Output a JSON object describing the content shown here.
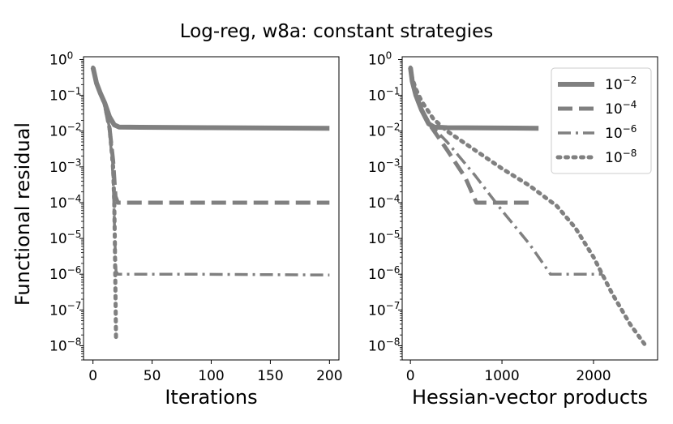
{
  "figure": {
    "title": "Log-reg, w8a: constant strategies",
    "shared_ylabel": "Functional residual",
    "colors": {
      "series": "#808080",
      "axis": "#000000",
      "legend_border": "#cccccc",
      "background": "#ffffff"
    }
  },
  "chart_data": [
    {
      "type": "line",
      "panel": "left",
      "title": "",
      "xlabel": "Iterations",
      "ylabel": "Functional residual",
      "xscale": "linear",
      "yscale": "log",
      "xlim": [
        -8,
        208
      ],
      "ylim": [
        4e-09,
        1.2
      ],
      "xticks": [
        0,
        50,
        100,
        150,
        200
      ],
      "xtick_labels": [
        "0",
        "50",
        "100",
        "150",
        "200"
      ],
      "yticks": [
        1,
        0.1,
        0.01,
        0.001,
        0.0001,
        1e-05,
        1e-06,
        1e-07,
        1e-08
      ],
      "ytick_labels": [
        {
          "base": "10",
          "exp": "0"
        },
        {
          "base": "10",
          "exp": "−1"
        },
        {
          "base": "10",
          "exp": "−2"
        },
        {
          "base": "10",
          "exp": "−3"
        },
        {
          "base": "10",
          "exp": "−4"
        },
        {
          "base": "10",
          "exp": "−5"
        },
        {
          "base": "10",
          "exp": "−6"
        },
        {
          "base": "10",
          "exp": "−7"
        },
        {
          "base": "10",
          "exp": "−8"
        }
      ],
      "grid": false,
      "legend": null,
      "series": [
        {
          "label_base": "10",
          "label_exp": "−2",
          "style": "solid",
          "x": [
            0,
            3,
            6,
            10,
            14,
            18,
            22,
            40,
            100,
            200
          ],
          "y": [
            0.6,
            0.22,
            0.12,
            0.06,
            0.025,
            0.015,
            0.013,
            0.0128,
            0.0125,
            0.012
          ]
        },
        {
          "label_base": "10",
          "label_exp": "−4",
          "style": "dashed",
          "x": [
            0,
            3,
            6,
            10,
            14,
            17,
            19,
            21,
            25,
            60,
            200
          ],
          "y": [
            0.6,
            0.22,
            0.12,
            0.055,
            0.012,
            0.0015,
            0.00015,
            0.0001,
            0.0001,
            0.0001,
            0.0001
          ]
        },
        {
          "label_base": "10",
          "label_exp": "−6",
          "style": "dashdot",
          "x": [
            0,
            3,
            6,
            10,
            14,
            17,
            18.5,
            19.5,
            21,
            30,
            80,
            200
          ],
          "y": [
            0.6,
            0.22,
            0.12,
            0.055,
            0.012,
            0.0005,
            1e-05,
            1.2e-06,
            1e-06,
            1e-06,
            1e-06,
            9.5e-07
          ]
        },
        {
          "label_base": "10",
          "label_exp": "−8",
          "style": "dotted",
          "x": [
            0,
            3,
            6,
            10,
            14,
            17,
            18,
            18.5,
            19,
            19.5
          ],
          "y": [
            0.6,
            0.22,
            0.12,
            0.055,
            0.012,
            0.001,
            0.0001,
            1e-05,
            3e-07,
            1.5e-08
          ]
        }
      ]
    },
    {
      "type": "line",
      "panel": "right",
      "title": "",
      "xlabel": "Hessian-vector products",
      "ylabel": "",
      "xscale": "linear",
      "yscale": "log",
      "xlim": [
        -90,
        2700
      ],
      "ylim": [
        4e-09,
        1.2
      ],
      "xticks": [
        0,
        1000,
        2000
      ],
      "xtick_labels": [
        "0",
        "1000",
        "2000"
      ],
      "yticks": [
        1,
        0.1,
        0.01,
        0.001,
        0.0001,
        1e-05,
        1e-06,
        1e-07,
        1e-08
      ],
      "ytick_labels": [
        {
          "base": "10",
          "exp": "0"
        },
        {
          "base": "10",
          "exp": "−1"
        },
        {
          "base": "10",
          "exp": "−2"
        },
        {
          "base": "10",
          "exp": "−3"
        },
        {
          "base": "10",
          "exp": "−4"
        },
        {
          "base": "10",
          "exp": "−5"
        },
        {
          "base": "10",
          "exp": "−6"
        },
        {
          "base": "10",
          "exp": "−7"
        },
        {
          "base": "10",
          "exp": "−8"
        }
      ],
      "grid": false,
      "legend": {
        "placement": "upper right"
      },
      "series": [
        {
          "label_base": "10",
          "label_exp": "−2",
          "style": "solid",
          "x": [
            0,
            20,
            60,
            120,
            200,
            260,
            400,
            1400
          ],
          "y": [
            0.6,
            0.25,
            0.1,
            0.04,
            0.016,
            0.013,
            0.0125,
            0.012
          ]
        },
        {
          "label_base": "10",
          "label_exp": "−4",
          "style": "dashed",
          "x": [
            0,
            20,
            60,
            120,
            220,
            400,
            600,
            720,
            800,
            1000,
            1350
          ],
          "y": [
            0.6,
            0.25,
            0.1,
            0.04,
            0.014,
            0.003,
            0.0005,
            0.0001,
            0.0001,
            0.0001,
            0.0001
          ]
        },
        {
          "label_base": "10",
          "label_exp": "−6",
          "style": "dashdot",
          "x": [
            0,
            20,
            60,
            120,
            220,
            400,
            700,
            1000,
            1300,
            1530,
            1600,
            2100
          ],
          "y": [
            0.6,
            0.25,
            0.1,
            0.04,
            0.015,
            0.005,
            0.0006,
            6e-05,
            7e-06,
            1e-06,
            1e-06,
            1e-06
          ]
        },
        {
          "label_base": "10",
          "label_exp": "−8",
          "style": "dotted",
          "x": [
            0,
            20,
            60,
            120,
            250,
            400,
            700,
            1000,
            1300,
            1600,
            1800,
            2000,
            2200,
            2400,
            2570
          ],
          "y": [
            0.6,
            0.3,
            0.15,
            0.07,
            0.022,
            0.01,
            0.003,
            0.0009,
            0.0003,
            8e-05,
            2e-05,
            3e-06,
            3e-07,
            4e-08,
            1e-08
          ]
        }
      ]
    }
  ]
}
